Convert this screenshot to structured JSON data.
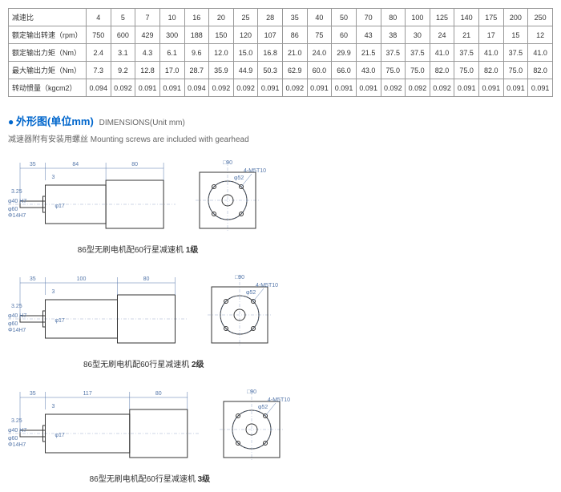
{
  "table": {
    "rows": [
      {
        "label": "减速比",
        "vals": [
          "4",
          "5",
          "7",
          "10",
          "16",
          "20",
          "25",
          "28",
          "35",
          "40",
          "50",
          "70",
          "80",
          "100",
          "125",
          "140",
          "175",
          "200",
          "250"
        ]
      },
      {
        "label": "额定输出转速（rpm）",
        "vals": [
          "750",
          "600",
          "429",
          "300",
          "188",
          "150",
          "120",
          "107",
          "86",
          "75",
          "60",
          "43",
          "38",
          "30",
          "24",
          "21",
          "17",
          "15",
          "12"
        ]
      },
      {
        "label": "额定输出力矩（Nm）",
        "vals": [
          "2.4",
          "3.1",
          "4.3",
          "6.1",
          "9.6",
          "12.0",
          "15.0",
          "16.8",
          "21.0",
          "24.0",
          "29.9",
          "21.5",
          "37.5",
          "37.5",
          "41.0",
          "37.5",
          "41.0",
          "37.5",
          "41.0"
        ]
      },
      {
        "label": "最大输出力矩（Nm）",
        "vals": [
          "7.3",
          "9.2",
          "12.8",
          "17.0",
          "28.7",
          "35.9",
          "44.9",
          "50.3",
          "62.9",
          "60.0",
          "66.0",
          "43.0",
          "75.0",
          "75.0",
          "82.0",
          "75.0",
          "82.0",
          "75.0",
          "82.0"
        ]
      },
      {
        "label": "转动惯量（kgcm2）",
        "vals": [
          "0.094",
          "0.092",
          "0.091",
          "0.091",
          "0.094",
          "0.092",
          "0.092",
          "0.091",
          "0.092",
          "0.091",
          "0.091",
          "0.091",
          "0.092",
          "0.092",
          "0.092",
          "0.091",
          "0.091",
          "0.091",
          "0.091"
        ]
      }
    ]
  },
  "section": {
    "bullet": "●",
    "title_cn": "外形图(单位mm)",
    "title_en": "DIMENSIONS(Unit mm)",
    "subtitle_cn": "减速器附有安装用螺丝",
    "subtitle_en": "Mounting screws are included with gearhead"
  },
  "diagrams": [
    {
      "body_len": "84",
      "caption": "86型无刷电机配60行星减速机 1级",
      "stage": "1级"
    },
    {
      "body_len": "100",
      "caption": "86型无刷电机配60行星减速机 2级",
      "stage": "2级"
    },
    {
      "body_len": "117",
      "caption": "86型无刷电机配60行星减速机 3级",
      "stage": "3级"
    }
  ],
  "dims": {
    "shaft_len": "35",
    "shaft_cut": "3",
    "shaft_step": "3.25",
    "motor_sq": "80",
    "bolt_sq": "□90",
    "bolt": "4-M5T10",
    "pcd": "φ52",
    "shaft_d": "φ40 H7",
    "hole_d": "Φ14H7",
    "body_d": "φ60",
    "small_d": "φ17"
  },
  "colors": {
    "dim": "#5577aa",
    "body": "#333333",
    "accent": "#0066cc"
  }
}
